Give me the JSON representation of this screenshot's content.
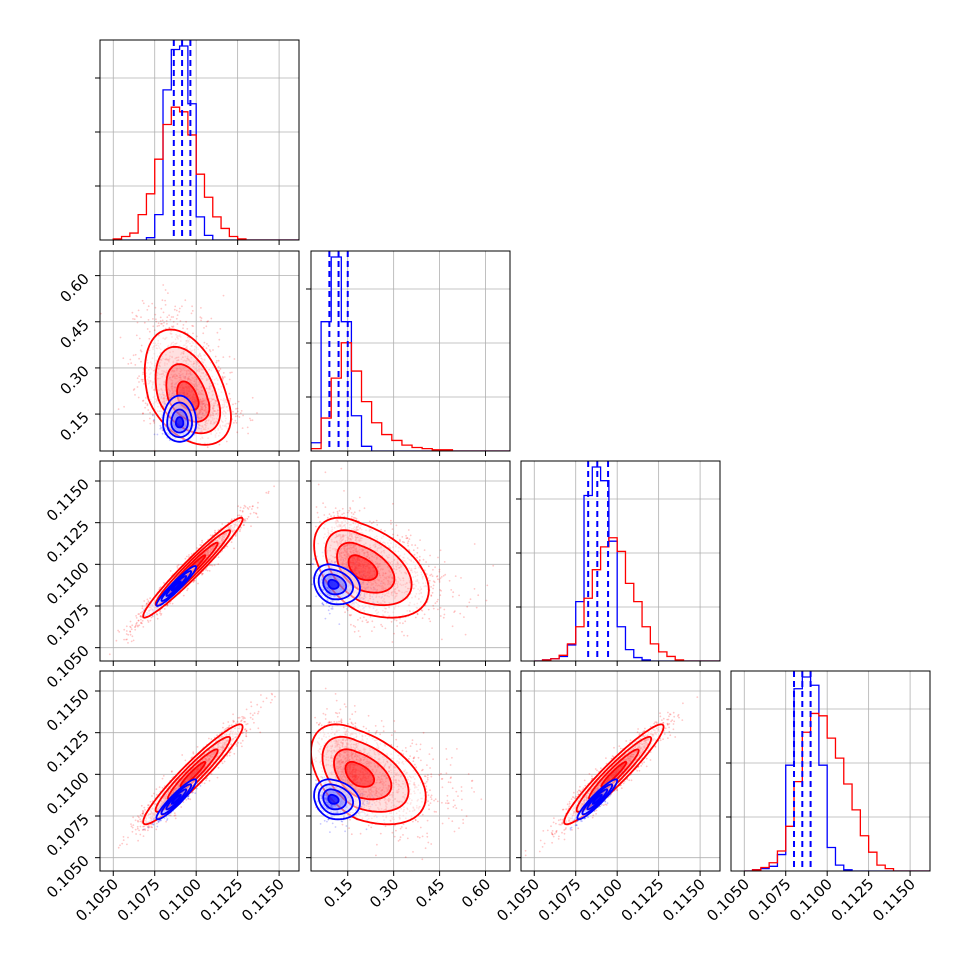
{
  "chart_data": {
    "type": "corner",
    "series": [
      {
        "name": "",
        "color": "#0000ff"
      },
      {
        "name": "",
        "color": "#ff0000"
      }
    ],
    "grid": true,
    "parameters": [
      {
        "index": 0,
        "range": [
          0.1042,
          0.1162
        ],
        "ticks": [
          0.105,
          0.1075,
          0.11,
          0.1125,
          0.115
        ],
        "tick_labels": [
          "0.1050",
          "0.1075",
          "0.1100",
          "0.1125",
          "0.1150"
        ]
      },
      {
        "index": 1,
        "range": [
          0.03,
          0.68
        ],
        "ticks": [
          0.15,
          0.3,
          0.45,
          0.6
        ],
        "tick_labels": [
          "0.15",
          "0.30",
          "0.45",
          "0.60"
        ]
      },
      {
        "index": 2,
        "range": [
          0.1042,
          0.1162
        ],
        "ticks": [
          0.105,
          0.1075,
          0.11,
          0.1125,
          0.115
        ],
        "tick_labels": [
          "0.1050",
          "0.1075",
          "0.1100",
          "0.1125",
          "0.1150"
        ]
      },
      {
        "index": 3,
        "range": [
          0.1042,
          0.1162
        ],
        "ticks": [
          0.105,
          0.1075,
          0.11,
          0.1125,
          0.115
        ],
        "tick_labels": [
          "0.1050",
          "0.1075",
          "0.1100",
          "0.1125",
          "0.1150"
        ]
      }
    ],
    "diagonal": [
      {
        "param": 0,
        "blue": {
          "bins_start": 0.105,
          "bin_width": 0.0005,
          "counts": [
            0,
            0,
            0,
            0,
            2,
            22,
            130,
            165,
            168,
            118,
            20,
            4,
            0,
            0,
            0,
            0,
            0,
            0,
            0,
            0,
            0,
            0,
            0,
            0
          ],
          "quantiles": [
            0.10865,
            0.10915,
            0.10965
          ]
        },
        "red": {
          "bins_start": 0.105,
          "bin_width": 0.0005,
          "counts": [
            1,
            3,
            6,
            22,
            40,
            70,
            100,
            115,
            111,
            91,
            57,
            37,
            20,
            10,
            3,
            1,
            0,
            0,
            0,
            0,
            0,
            0,
            0,
            0
          ]
        }
      },
      {
        "param": 1,
        "blue": {
          "bins_start": 0.03,
          "bin_width": 0.033,
          "counts": [
            7,
            110,
            165,
            110,
            30,
            4,
            0,
            0,
            0,
            0,
            0,
            0,
            0,
            0,
            0,
            0,
            0,
            0,
            0,
            0
          ],
          "quantiles": [
            0.09,
            0.12,
            0.15
          ]
        },
        "red": {
          "bins_start": 0.03,
          "bin_width": 0.033,
          "counts": [
            2,
            28,
            62,
            92,
            68,
            42,
            24,
            14,
            9,
            5,
            3,
            2,
            1,
            1,
            0,
            0,
            0,
            0,
            0,
            0
          ]
        }
      },
      {
        "param": 2,
        "blue": {
          "bins_start": 0.105,
          "bin_width": 0.0005,
          "counts": [
            0,
            1,
            2,
            4,
            14,
            52,
            145,
            170,
            158,
            105,
            30,
            10,
            3,
            1,
            0,
            0,
            0,
            0,
            0,
            0,
            0,
            0,
            0,
            0
          ],
          "quantiles": [
            0.10825,
            0.1088,
            0.10945
          ]
        },
        "red": {
          "bins_start": 0.105,
          "bin_width": 0.0005,
          "counts": [
            0,
            1,
            2,
            5,
            15,
            30,
            55,
            80,
            100,
            108,
            96,
            68,
            52,
            30,
            15,
            8,
            4,
            1,
            0,
            0,
            0,
            0,
            0,
            0
          ]
        }
      },
      {
        "param": 3,
        "blue": {
          "bins_start": 0.105,
          "bin_width": 0.0005,
          "counts": [
            0,
            1,
            2,
            4,
            14,
            90,
            155,
            165,
            158,
            90,
            20,
            5,
            1,
            0,
            0,
            0,
            0,
            0,
            0,
            0,
            0,
            0,
            0,
            0
          ],
          "quantiles": [
            0.108,
            0.1085,
            0.109
          ]
        },
        "red": {
          "bins_start": 0.105,
          "bin_width": 0.0005,
          "counts": [
            0,
            1,
            3,
            7,
            17,
            38,
            76,
            118,
            134,
            132,
            113,
            96,
            74,
            52,
            30,
            16,
            5,
            2,
            0,
            0,
            0,
            0,
            0,
            0
          ]
        }
      }
    ],
    "pairs": [
      {
        "x": 0,
        "y": 1,
        "blue": {
          "center": [
            0.109,
            0.12
          ],
          "sx": 0.0005,
          "sy": 0.03,
          "rho": 0.0,
          "n": 900
        },
        "red": {
          "center": [
            0.1095,
            0.2
          ],
          "sx": 0.0013,
          "sy": 0.075,
          "rho": -0.4,
          "n": 2200
        }
      },
      {
        "x": 0,
        "y": 2,
        "blue": {
          "center": [
            0.1088,
            0.1087
          ],
          "sx": 0.0006,
          "sy": 0.0006,
          "rho": 0.95,
          "n": 900
        },
        "red": {
          "center": [
            0.1098,
            0.1098
          ],
          "sx": 0.0015,
          "sy": 0.0015,
          "rho": 0.97,
          "n": 2200
        }
      },
      {
        "x": 0,
        "y": 3,
        "blue": {
          "center": [
            0.1088,
            0.1085
          ],
          "sx": 0.0006,
          "sy": 0.0006,
          "rho": 0.93,
          "n": 900
        },
        "red": {
          "center": [
            0.1098,
            0.11
          ],
          "sx": 0.0015,
          "sy": 0.0015,
          "rho": 0.95,
          "n": 2200
        }
      },
      {
        "x": 1,
        "y": 2,
        "blue": {
          "center": [
            0.1,
            0.1088
          ],
          "sx": 0.03,
          "sy": 0.0006,
          "rho": -0.2,
          "n": 900
        },
        "red": {
          "center": [
            0.19,
            0.1098
          ],
          "sx": 0.075,
          "sy": 0.0015,
          "rho": -0.45,
          "n": 2200
        }
      },
      {
        "x": 1,
        "y": 3,
        "blue": {
          "center": [
            0.1,
            0.1085
          ],
          "sx": 0.03,
          "sy": 0.0006,
          "rho": -0.2,
          "n": 900
        },
        "red": {
          "center": [
            0.18,
            0.11
          ],
          "sx": 0.075,
          "sy": 0.0015,
          "rho": -0.45,
          "n": 2200
        }
      },
      {
        "x": 2,
        "y": 3,
        "blue": {
          "center": [
            0.1088,
            0.1085
          ],
          "sx": 0.0006,
          "sy": 0.0006,
          "rho": 0.93,
          "n": 900
        },
        "red": {
          "center": [
            0.1098,
            0.11
          ],
          "sx": 0.0015,
          "sy": 0.0015,
          "rho": 0.95,
          "n": 2200
        }
      }
    ]
  }
}
